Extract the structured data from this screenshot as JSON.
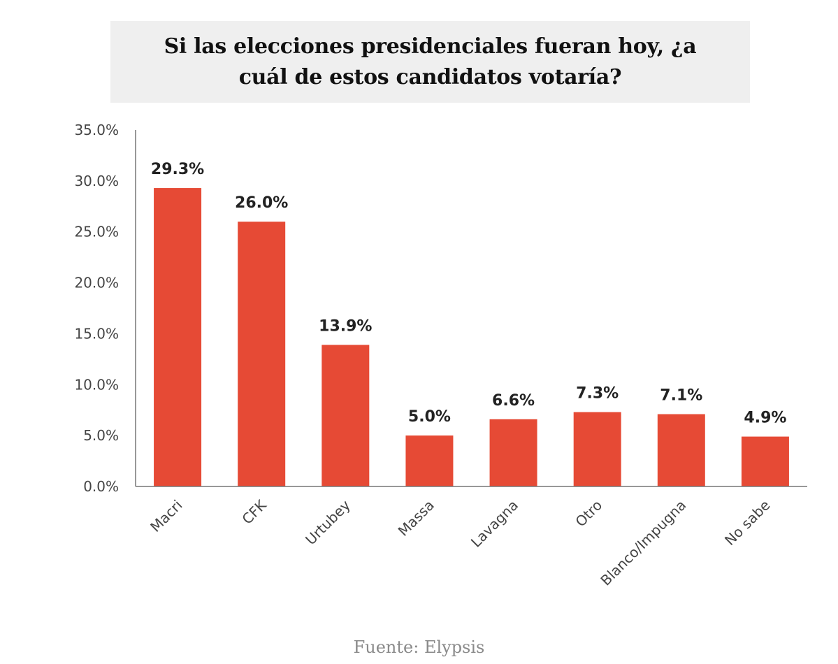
{
  "chart_data": {
    "type": "bar",
    "title": "Si las elecciones presidenciales fueran hoy, ¿a cuál de estos candidatos votaría?",
    "categories": [
      "Macri",
      "CFK",
      "Urtubey",
      "Massa",
      "Lavagna",
      "Otro",
      "Blanco/Impugna",
      "No sabe"
    ],
    "values": [
      29.3,
      26.0,
      13.9,
      5.0,
      6.6,
      7.3,
      7.1,
      4.9
    ],
    "data_labels": [
      "29.3%",
      "26.0%",
      "13.9%",
      "5.0%",
      "6.6%",
      "7.3%",
      "7.1%",
      "4.9%"
    ],
    "ylim": [
      0,
      35
    ],
    "yticks": [
      0,
      5,
      10,
      15,
      20,
      25,
      30,
      35
    ],
    "ytick_labels": [
      "0.0%",
      "5.0%",
      "10.0%",
      "15.0%",
      "20.0%",
      "25.0%",
      "30.0%",
      "35.0%"
    ],
    "grid": false,
    "legend": "none",
    "bar_color": "#e64a35",
    "source": "Fuente: Elypsis"
  }
}
